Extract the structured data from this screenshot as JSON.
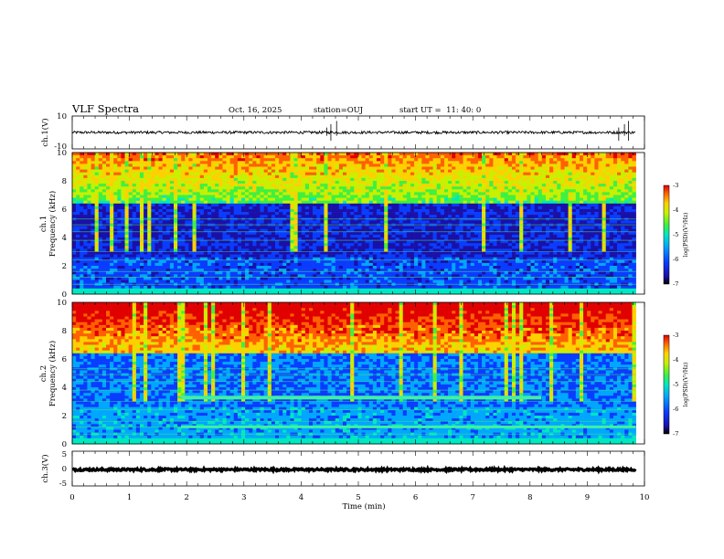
{
  "header": {
    "title": "VLF Spectra",
    "date": "Oct. 16, 2025",
    "station": "station=OUJ",
    "start_ut": "start UT =  11: 40: 0"
  },
  "chart_data": [
    {
      "type": "line",
      "name": "ch1-waveform",
      "ylabel": "ch.1(V)",
      "ylim": [
        -10,
        10
      ],
      "yticks": [
        "10",
        "-10"
      ],
      "xlim": [
        0,
        10
      ],
      "baseline": 0,
      "data_end_min": 9.85
    },
    {
      "type": "heatmap",
      "name": "ch1-spectrogram",
      "ylabel_top": "ch.1",
      "ylabel": "Frequency (kHz)",
      "ylim": [
        0,
        10
      ],
      "yticks": [
        "0",
        "2",
        "4",
        "6",
        "8",
        "10"
      ],
      "xlim": [
        0,
        10
      ],
      "colorbar": {
        "label": "log(PSD)(V²/Hz)",
        "range": [
          -7,
          -3
        ],
        "ticks": [
          "-3",
          "-4",
          "-5",
          "-6",
          "-7"
        ]
      }
    },
    {
      "type": "heatmap",
      "name": "ch2-spectrogram",
      "ylabel_top": "ch.2",
      "ylabel": "Frequency (kHz)",
      "ylim": [
        0,
        10
      ],
      "yticks": [
        "0",
        "2",
        "4",
        "6",
        "8",
        "10"
      ],
      "xlim": [
        0,
        10
      ],
      "colorbar": {
        "label": "log(PSD)(V²/Hz)",
        "range": [
          -7,
          -3
        ],
        "ticks": [
          "-3",
          "-4",
          "-5",
          "-6",
          "-7"
        ]
      }
    },
    {
      "type": "line",
      "name": "ch3-waveform",
      "ylabel": "ch.3(V)",
      "ylim": [
        -5,
        5
      ],
      "yticks": [
        "5",
        "0",
        "-5"
      ],
      "xlim": [
        0,
        10
      ],
      "baseline": -0.3,
      "data_end_min": 9.85
    }
  ],
  "x_axis": {
    "label": "Time (min)",
    "ticks": [
      "0",
      "1",
      "2",
      "3",
      "4",
      "5",
      "6",
      "7",
      "8",
      "9",
      "10"
    ]
  },
  "colors": {
    "colormap": [
      "#000000",
      "#1a10a8",
      "#0a3cff",
      "#00a6ff",
      "#00e8c0",
      "#40f040",
      "#c8f000",
      "#ffd000",
      "#ff6000",
      "#e00000"
    ]
  }
}
